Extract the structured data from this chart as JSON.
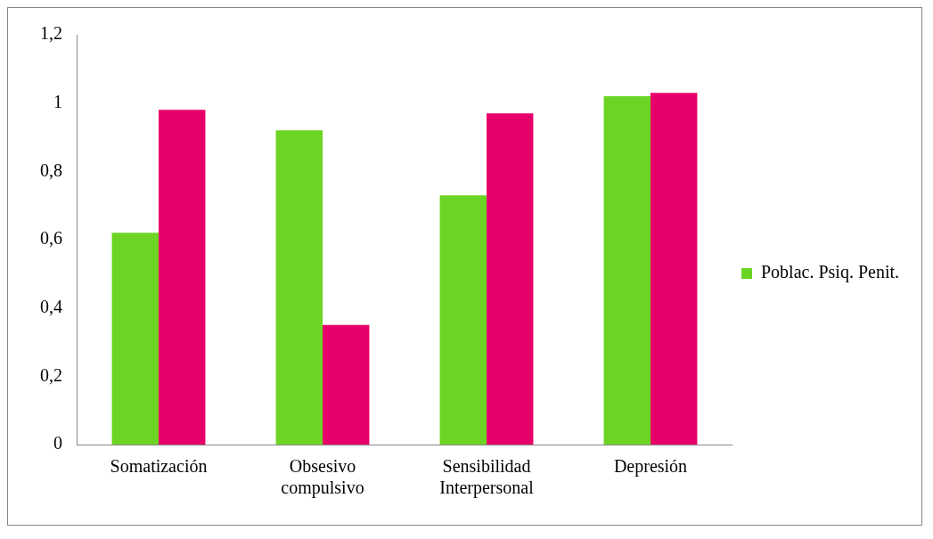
{
  "chart_data": {
    "type": "bar",
    "categories": [
      "Somatización",
      "Obsesivo compulsivo",
      "Sensibilidad Interpersonal",
      "Depresión"
    ],
    "series": [
      {
        "name": "Poblac. Psiq. Penit.",
        "color": "#6cd424",
        "values": [
          0.62,
          0.92,
          0.73,
          1.02
        ]
      },
      {
        "color": "#e8006a",
        "values": [
          0.98,
          0.35,
          0.97,
          1.03
        ]
      }
    ],
    "ylim": [
      0,
      1.2
    ],
    "yticks": [
      0,
      {
        "value": 0.2,
        "label": "0,2"
      },
      {
        "value": 0.4,
        "label": "0,4"
      },
      {
        "value": 0.6,
        "label": "0,6"
      },
      {
        "value": 0.8,
        "label": "0,8"
      },
      1,
      {
        "value": 1.2,
        "label": "1,2"
      }
    ],
    "grid": false,
    "legend": "right"
  }
}
